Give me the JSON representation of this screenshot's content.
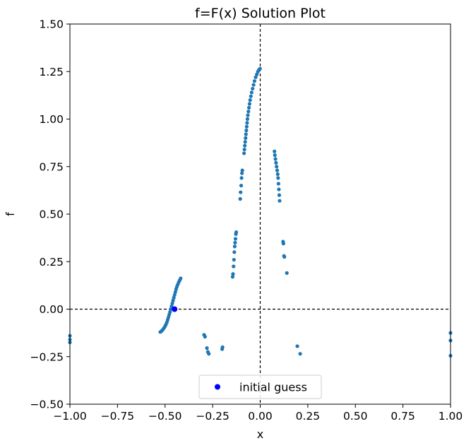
{
  "chart_data": {
    "type": "scatter",
    "title": "f=F(x) Solution Plot",
    "xlabel": "x",
    "ylabel": "f",
    "xlim": [
      -1.0,
      1.0
    ],
    "ylim": [
      -0.5,
      1.5
    ],
    "xticks": [
      -1.0,
      -0.75,
      -0.5,
      -0.25,
      0.0,
      0.25,
      0.5,
      0.75,
      1.0
    ],
    "xtick_labels": [
      "−1.00",
      "−0.75",
      "−0.50",
      "−0.25",
      "0.00",
      "0.25",
      "0.50",
      "0.75",
      "1.00"
    ],
    "yticks": [
      -0.5,
      -0.25,
      0.0,
      0.25,
      0.5,
      0.75,
      1.0,
      1.25,
      1.5
    ],
    "ytick_labels": [
      "−0.50",
      "−0.25",
      "0.00",
      "0.25",
      "0.50",
      "0.75",
      "1.00",
      "1.25",
      "1.50"
    ],
    "grid": false,
    "reference_lines": [
      {
        "orientation": "horizontal",
        "value": 0.0,
        "style": "dashed",
        "color": "#000000"
      },
      {
        "orientation": "vertical",
        "value": 0.0,
        "style": "dashed",
        "color": "#000000"
      }
    ],
    "legend": {
      "placement": "lower-center",
      "entries": [
        "initial guess"
      ]
    },
    "series": [
      {
        "color": "#1f77b4",
        "marker": "circle-small",
        "points": [
          [
            -0.525,
            -0.12
          ],
          [
            -0.518,
            -0.115
          ],
          [
            -0.512,
            -0.108
          ],
          [
            -0.506,
            -0.1
          ],
          [
            -0.5,
            -0.09
          ],
          [
            -0.495,
            -0.08
          ],
          [
            -0.49,
            -0.068
          ],
          [
            -0.486,
            -0.055
          ],
          [
            -0.482,
            -0.042
          ],
          [
            -0.478,
            -0.028
          ],
          [
            -0.474,
            -0.015
          ],
          [
            -0.47,
            0.0
          ],
          [
            -0.466,
            0.015
          ],
          [
            -0.462,
            0.03
          ],
          [
            -0.458,
            0.045
          ],
          [
            -0.454,
            0.06
          ],
          [
            -0.45,
            0.075
          ],
          [
            -0.446,
            0.09
          ],
          [
            -0.442,
            0.105
          ],
          [
            -0.438,
            0.118
          ],
          [
            -0.433,
            0.13
          ],
          [
            -0.428,
            0.142
          ],
          [
            -0.423,
            0.152
          ],
          [
            -0.418,
            0.162
          ],
          [
            -0.295,
            -0.135
          ],
          [
            -0.29,
            -0.145
          ],
          [
            -0.28,
            -0.205
          ],
          [
            -0.275,
            -0.225
          ],
          [
            -0.27,
            -0.235
          ],
          [
            -0.2,
            -0.21
          ],
          [
            -0.198,
            -0.2
          ],
          [
            -0.145,
            0.17
          ],
          [
            -0.143,
            0.185
          ],
          [
            -0.14,
            0.225
          ],
          [
            -0.138,
            0.26
          ],
          [
            -0.136,
            0.3
          ],
          [
            -0.134,
            0.33
          ],
          [
            -0.132,
            0.35
          ],
          [
            -0.13,
            0.37
          ],
          [
            -0.128,
            0.395
          ],
          [
            -0.126,
            0.405
          ],
          [
            -0.105,
            0.58
          ],
          [
            -0.103,
            0.615
          ],
          [
            -0.1,
            0.65
          ],
          [
            -0.098,
            0.69
          ],
          [
            -0.096,
            0.715
          ],
          [
            -0.094,
            0.73
          ],
          [
            -0.085,
            0.82
          ],
          [
            -0.083,
            0.84
          ],
          [
            -0.081,
            0.86
          ],
          [
            -0.079,
            0.88
          ],
          [
            -0.077,
            0.9
          ],
          [
            -0.075,
            0.92
          ],
          [
            -0.073,
            0.94
          ],
          [
            -0.071,
            0.96
          ],
          [
            -0.069,
            0.98
          ],
          [
            -0.067,
            1.0
          ],
          [
            -0.065,
            1.02
          ],
          [
            -0.062,
            1.04
          ],
          [
            -0.059,
            1.06
          ],
          [
            -0.056,
            1.08
          ],
          [
            -0.053,
            1.1
          ],
          [
            -0.049,
            1.12
          ],
          [
            -0.045,
            1.14
          ],
          [
            -0.04,
            1.16
          ],
          [
            -0.035,
            1.18
          ],
          [
            -0.03,
            1.2
          ],
          [
            -0.024,
            1.22
          ],
          [
            -0.018,
            1.235
          ],
          [
            -0.012,
            1.25
          ],
          [
            -0.006,
            1.26
          ],
          [
            -0.001,
            1.265
          ],
          [
            0.075,
            0.83
          ],
          [
            0.077,
            0.81
          ],
          [
            0.08,
            0.79
          ],
          [
            0.083,
            0.77
          ],
          [
            0.086,
            0.75
          ],
          [
            0.089,
            0.73
          ],
          [
            0.092,
            0.71
          ],
          [
            0.094,
            0.69
          ],
          [
            0.096,
            0.66
          ],
          [
            0.098,
            0.63
          ],
          [
            0.1,
            0.6
          ],
          [
            0.102,
            0.57
          ],
          [
            0.12,
            0.355
          ],
          [
            0.122,
            0.345
          ],
          [
            0.125,
            0.28
          ],
          [
            0.127,
            0.275
          ],
          [
            0.14,
            0.19
          ],
          [
            0.195,
            -0.195
          ],
          [
            0.21,
            -0.235
          ],
          [
            -1.0,
            -0.14
          ],
          [
            -1.0,
            -0.16
          ],
          [
            -1.0,
            -0.175
          ],
          [
            1.0,
            -0.125
          ],
          [
            1.0,
            -0.165
          ],
          [
            1.0,
            -0.245
          ]
        ]
      },
      {
        "name": "initial guess",
        "color": "#0000ff",
        "marker": "circle-large",
        "points": [
          [
            -0.45,
            0.0
          ]
        ]
      }
    ]
  }
}
